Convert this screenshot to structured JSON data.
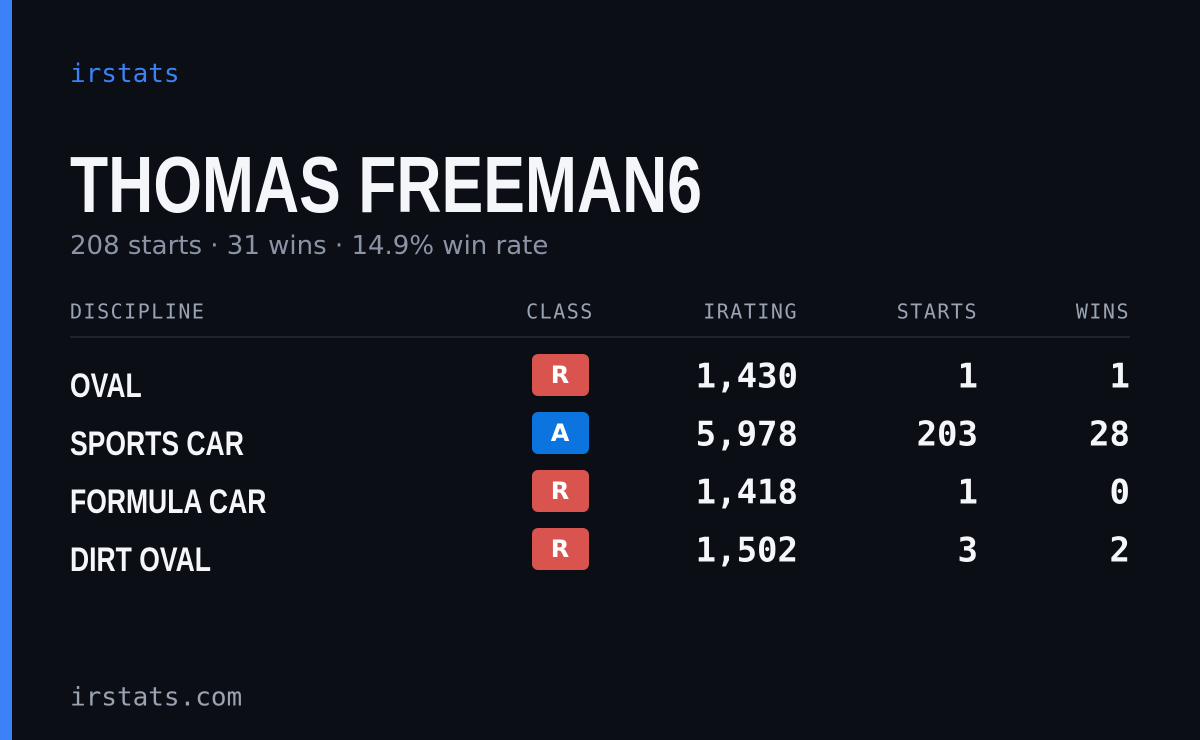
{
  "header": {
    "brand": "irstats",
    "name": "THOMAS FREEMAN6",
    "summary": "208 starts · 31 wins · 14.9% win rate"
  },
  "table": {
    "columns": [
      "DISCIPLINE",
      "CLASS",
      "IRATING",
      "STARTS",
      "WINS"
    ],
    "rows": [
      [
        "OVAL",
        "R",
        "1,430",
        "1",
        "1"
      ],
      [
        "SPORTS CAR",
        "A",
        "5,978",
        "203",
        "28"
      ],
      [
        "FORMULA CAR",
        "R",
        "1,418",
        "1",
        "0"
      ],
      [
        "DIRT OVAL",
        "R",
        "1,502",
        "3",
        "2"
      ]
    ],
    "class_colors": {
      "R": "#d9534f",
      "A": "#0b74de"
    }
  },
  "footer": {
    "site": "irstats.com"
  }
}
